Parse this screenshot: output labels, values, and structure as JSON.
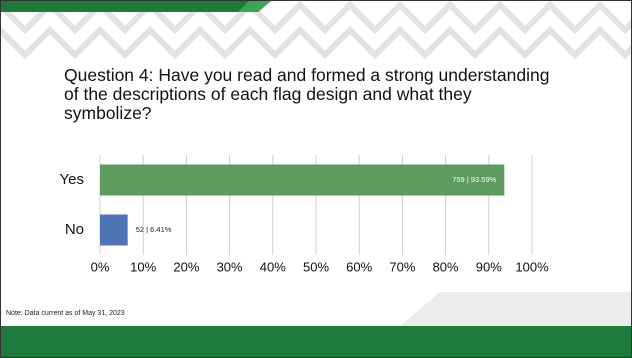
{
  "title": "Question 4: Have you read and formed a strong understanding of the descriptions of each flag design and what they symbolize?",
  "note": "Note: Data current as of May 31, 2023",
  "chart_data": {
    "type": "bar",
    "categories": [
      "Yes",
      "No"
    ],
    "values": [
      93.59,
      6.41
    ],
    "value_labels": [
      "759 | 93.59%",
      "52 | 6.41%"
    ],
    "colors": [
      "#5e9b5f",
      "#4f73b5"
    ],
    "xlim": [
      0,
      100
    ],
    "xticks": [
      {
        "value": 0,
        "label": "0%"
      },
      {
        "value": 10,
        "label": "10%"
      },
      {
        "value": 20,
        "label": "20%"
      },
      {
        "value": 30,
        "label": "30%"
      },
      {
        "value": 40,
        "label": "40%"
      },
      {
        "value": 50,
        "label": "50%"
      },
      {
        "value": 60,
        "label": "60%"
      },
      {
        "value": 70,
        "label": "70%"
      },
      {
        "value": 80,
        "label": "80%"
      },
      {
        "value": 90,
        "label": "90%"
      },
      {
        "value": 100,
        "label": "100%"
      }
    ],
    "grid": true
  }
}
